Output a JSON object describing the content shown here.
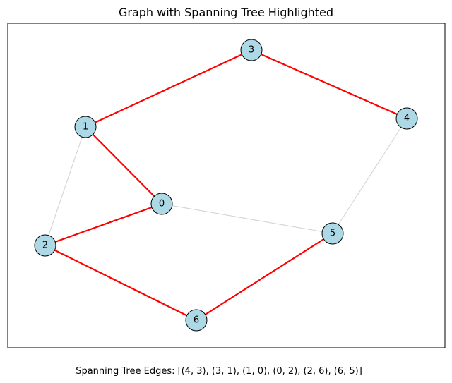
{
  "figure": {
    "title": "Graph with Spanning Tree Highlighted",
    "caption": "Spanning Tree Edges: [(4, 3), (3, 1), (1, 0), (0, 2), (2, 6), (6, 5)]"
  },
  "chart_data": {
    "type": "graph",
    "title": "Graph with Spanning Tree Highlighted",
    "nodes": [
      {
        "id": "0",
        "label": "0"
      },
      {
        "id": "1",
        "label": "1"
      },
      {
        "id": "2",
        "label": "2"
      },
      {
        "id": "3",
        "label": "3"
      },
      {
        "id": "4",
        "label": "4"
      },
      {
        "id": "5",
        "label": "5"
      },
      {
        "id": "6",
        "label": "6"
      }
    ],
    "edges": [
      {
        "source": "1",
        "target": "2",
        "in_spanning_tree": false
      },
      {
        "source": "4",
        "target": "5",
        "in_spanning_tree": false
      },
      {
        "source": "0",
        "target": "5",
        "in_spanning_tree": false
      },
      {
        "source": "4",
        "target": "3",
        "in_spanning_tree": true
      },
      {
        "source": "3",
        "target": "1",
        "in_spanning_tree": true
      },
      {
        "source": "1",
        "target": "0",
        "in_spanning_tree": true
      },
      {
        "source": "0",
        "target": "2",
        "in_spanning_tree": true
      },
      {
        "source": "2",
        "target": "6",
        "in_spanning_tree": true
      },
      {
        "source": "6",
        "target": "5",
        "in_spanning_tree": true
      }
    ],
    "styles": {
      "node_fill": "#add8e6",
      "node_stroke": "#000000",
      "tree_edge_color": "#ff0000",
      "other_edge_color": "#d3d3d3"
    }
  }
}
